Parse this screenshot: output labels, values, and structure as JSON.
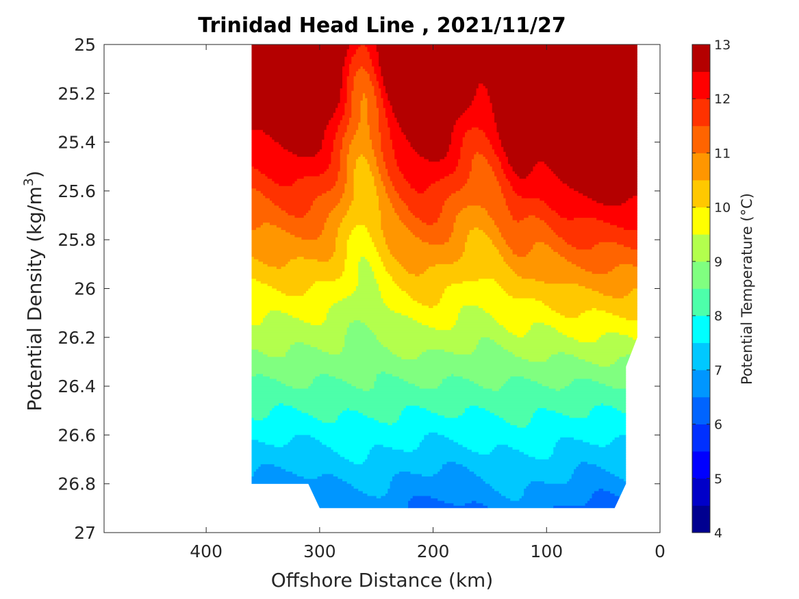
{
  "chart_data": {
    "type": "contourf",
    "title": "Trinidad Head Line , 2021/11/27",
    "xlabel": "Offshore Distance (km)",
    "ylabel": "Potential Density (kg/m",
    "ylabel_superscript": "3",
    "ylabel_close": ")",
    "colorbar_label": "Potential Temperature (°C)",
    "x_axis_reversed": true,
    "y_axis_reversed": true,
    "xlim": [
      0,
      490
    ],
    "ylim": [
      25,
      27
    ],
    "x_ticks": [
      400,
      300,
      200,
      100,
      0
    ],
    "x_tick_labels": [
      "400",
      "300",
      "200",
      "100",
      "0"
    ],
    "y_ticks": [
      25,
      25.2,
      25.4,
      25.6,
      25.8,
      26,
      26.2,
      26.4,
      26.6,
      26.8,
      27
    ],
    "y_tick_labels": [
      "25",
      "25.2",
      "25.4",
      "25.6",
      "25.8",
      "26",
      "26.2",
      "26.4",
      "26.6",
      "26.8",
      "27"
    ],
    "colorbar_ticks": [
      4,
      5,
      6,
      7,
      8,
      9,
      10,
      11,
      12,
      13
    ],
    "colorbar_tick_labels": [
      "4",
      "5",
      "6",
      "7",
      "8",
      "9",
      "10",
      "11",
      "12",
      "13"
    ],
    "levels": [
      4,
      4.5,
      5,
      5.5,
      6,
      6.5,
      7,
      7.5,
      8,
      8.5,
      9,
      9.5,
      10,
      10.5,
      11,
      11.5,
      12,
      12.5,
      13
    ],
    "level_colors": [
      "#000090",
      "#0000c8",
      "#0000ff",
      "#0030ff",
      "#0064ff",
      "#0096ff",
      "#00c8ff",
      "#00ffff",
      "#4dffaa",
      "#80ff80",
      "#b3ff4d",
      "#ffff00",
      "#ffc800",
      "#ff9600",
      "#ff6400",
      "#ff3200",
      "#ff0000",
      "#b40000"
    ],
    "data_domain_x": [
      20,
      360
    ],
    "data_domain_y": [
      25,
      26.9
    ],
    "domain_outline": [
      [
        360,
        25
      ],
      [
        20,
        25
      ],
      [
        20,
        26.2
      ],
      [
        30,
        26.32
      ],
      [
        30,
        26.8
      ],
      [
        40,
        26.9
      ],
      [
        300,
        26.9
      ],
      [
        310,
        26.8
      ],
      [
        360,
        26.8
      ]
    ],
    "grid": false
  }
}
